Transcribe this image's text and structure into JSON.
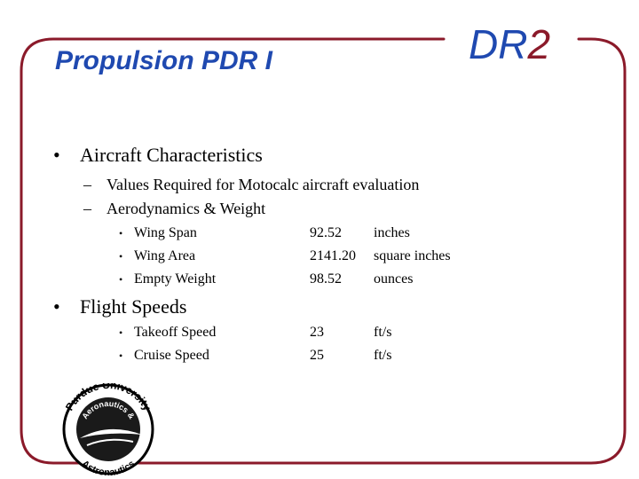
{
  "header": {
    "title": "Propulsion PDR I",
    "brand_prefix": "DR",
    "brand_number": "2"
  },
  "bullets": [
    {
      "symbol": "•",
      "text": "Aircraft Characteristics",
      "sub": [
        {
          "symbol": "–",
          "text": "Values Required for Motocalc aircraft evaluation"
        },
        {
          "symbol": "–",
          "text": "Aerodynamics & Weight"
        }
      ],
      "rows": [
        {
          "symbol": "•",
          "label": "Wing Span",
          "value": "92.52",
          "unit": "inches"
        },
        {
          "symbol": "•",
          "label": "Wing Area",
          "value": "2141.20",
          "unit": "square inches"
        },
        {
          "symbol": "•",
          "label": "Empty Weight",
          "value": "98.52",
          "unit": "ounces"
        }
      ]
    },
    {
      "symbol": "•",
      "text": "Flight Speeds",
      "rows": [
        {
          "symbol": "•",
          "label": "Takeoff Speed",
          "value": "23",
          "unit": "ft/s"
        },
        {
          "symbol": "•",
          "label": "Cruise Speed",
          "value": "25",
          "unit": "ft/s"
        }
      ]
    }
  ],
  "logo": {
    "top_text": "Purdue University",
    "middle_text": "Aeronautics &",
    "bottom_text": "Astronautics"
  },
  "colors": {
    "title_blue": "#1f49b0",
    "frame_maroon": "#8b1a2a"
  }
}
